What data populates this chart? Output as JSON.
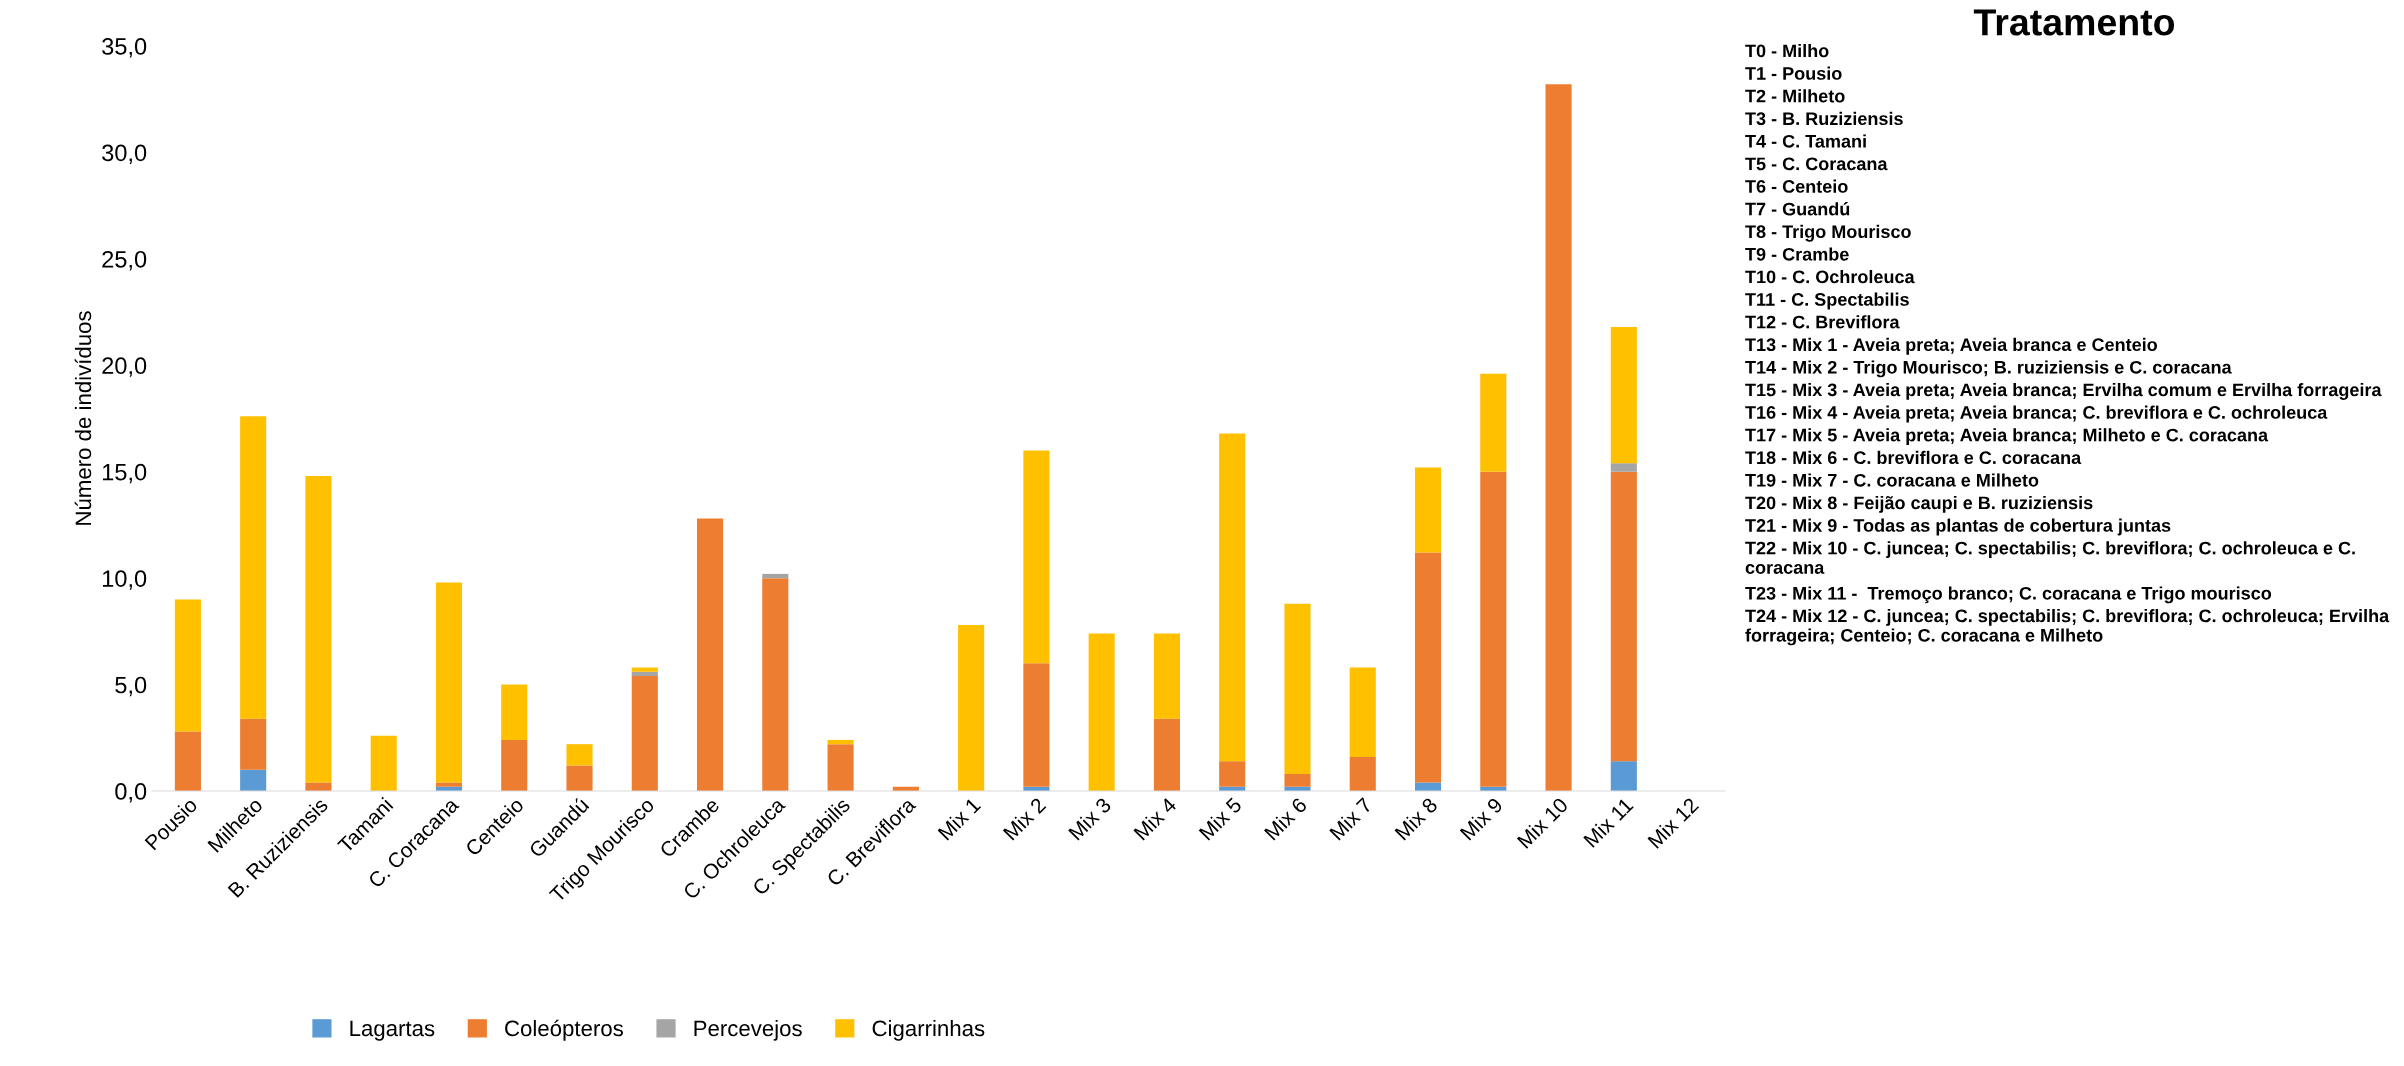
{
  "chart_data": {
    "type": "bar",
    "stacked": true,
    "ylabel": "Número de indivíduos",
    "categories": [
      "Pousio",
      "Milheto",
      "B. Ruziziensis",
      "Tamani",
      "C. Coracana",
      "Centeio",
      "Guandú",
      "Trigo Mourisco",
      "Crambe",
      "C. Ochroleuca",
      "C. Spectabilis",
      "C. Breviflora",
      "Mix 1",
      "Mix 2",
      "Mix 3",
      "Mix 4",
      "Mix 5",
      "Mix 6",
      "Mix 7",
      "Mix 8",
      "Mix 9",
      "Mix 10",
      "Mix 11",
      "Mix 12"
    ],
    "series": [
      {
        "name": "Lagartas",
        "color": "#5b9bd5",
        "values": [
          0,
          1.0,
          0,
          0,
          0.2,
          0,
          0,
          0,
          0,
          0,
          0,
          0,
          0,
          0.2,
          0,
          0,
          0.2,
          0.2,
          0,
          0.4,
          0.2,
          0,
          1.4,
          null
        ]
      },
      {
        "name": "Coleópteros",
        "color": "#ed7d31",
        "values": [
          2.8,
          2.4,
          0.4,
          0,
          0.2,
          2.4,
          1.2,
          5.4,
          12.8,
          10.0,
          2.2,
          0.2,
          0,
          5.8,
          0,
          3.4,
          1.2,
          0.6,
          1.6,
          10.8,
          14.8,
          33.2,
          13.6,
          null
        ]
      },
      {
        "name": "Percevejos",
        "color": "#a5a5a5",
        "values": [
          0,
          0,
          0,
          0,
          0,
          0,
          0,
          0.2,
          0,
          0.2,
          0,
          0,
          0,
          0,
          0,
          0,
          0,
          0,
          0,
          0,
          0,
          0,
          0.4,
          null
        ]
      },
      {
        "name": "Cigarrinhas",
        "color": "#ffc000",
        "values": [
          6.2,
          14.2,
          14.4,
          2.6,
          9.4,
          2.6,
          1.0,
          0.2,
          0,
          0,
          0.2,
          0,
          7.8,
          10.0,
          7.4,
          4.0,
          15.4,
          8.0,
          4.2,
          4.0,
          4.6,
          0,
          6.4,
          null
        ]
      }
    ],
    "ylim": [
      0,
      35
    ],
    "yticks": [
      {
        "value": 0,
        "label": "0,0"
      },
      {
        "value": 5,
        "label": "5,0"
      },
      {
        "value": 10,
        "label": "10,0"
      },
      {
        "value": 15,
        "label": "15,0"
      },
      {
        "value": 20,
        "label": "20,0"
      },
      {
        "value": 25,
        "label": "25,0"
      },
      {
        "value": 30,
        "label": "30,0"
      },
      {
        "value": 35,
        "label": "35,0"
      }
    ],
    "grid": false,
    "legend": "bottom",
    "annotations": [
      "Tratamento",
      "T0 - Milho",
      "T1 - Pousio",
      "T2 - Milheto",
      "T3 - B. Ruziziensis",
      "T4 - C. Tamani",
      "T5 - C. Coracana",
      "T6 - Centeio",
      "T7 - Guandú",
      "T8 - Trigo Mourisco",
      "T9 - Crambe",
      "T10 - C. Ochroleuca",
      "T11 - C. Spectabilis",
      "T12 - C. Breviflora",
      "T13 - Mix 1 - Aveia preta; Aveia branca e Centeio",
      "T14 - Mix 2 - Trigo Mourisco; B. ruziziensis e C. coracana",
      "T15 - Mix 3 - Aveia preta; Aveia branca; Ervilha comum e Ervilha forrageira",
      "T16 - Mix 4 - Aveia preta; Aveia branca; C. breviflora e C. ochroleuca",
      "T17 - Mix 5 - Aveia preta; Aveia branca; Milheto e C. coracana",
      "T18 - Mix 6 - C. breviflora e C. coracana",
      "T19 - Mix 7 - C. coracana e Milheto",
      "T20 - Mix 8 - Feijão caupi e B. ruziziensis",
      "T21 - Mix 9 - Todas as plantas de cobertura juntas",
      "T22 - Mix 10 - C. juncea; C. spectabilis; C. breviflora; C. ochroleuca e C. coracana",
      "T23 - Mix 11 -  Tremoço branco; C. coracana e Trigo mourisco",
      "T24 - Mix 12 - C. juncea; C. spectabilis; C. breviflora; C. ochroleuca; Ervilha forrageira; Centeio; C. coracana e Milheto"
    ]
  }
}
